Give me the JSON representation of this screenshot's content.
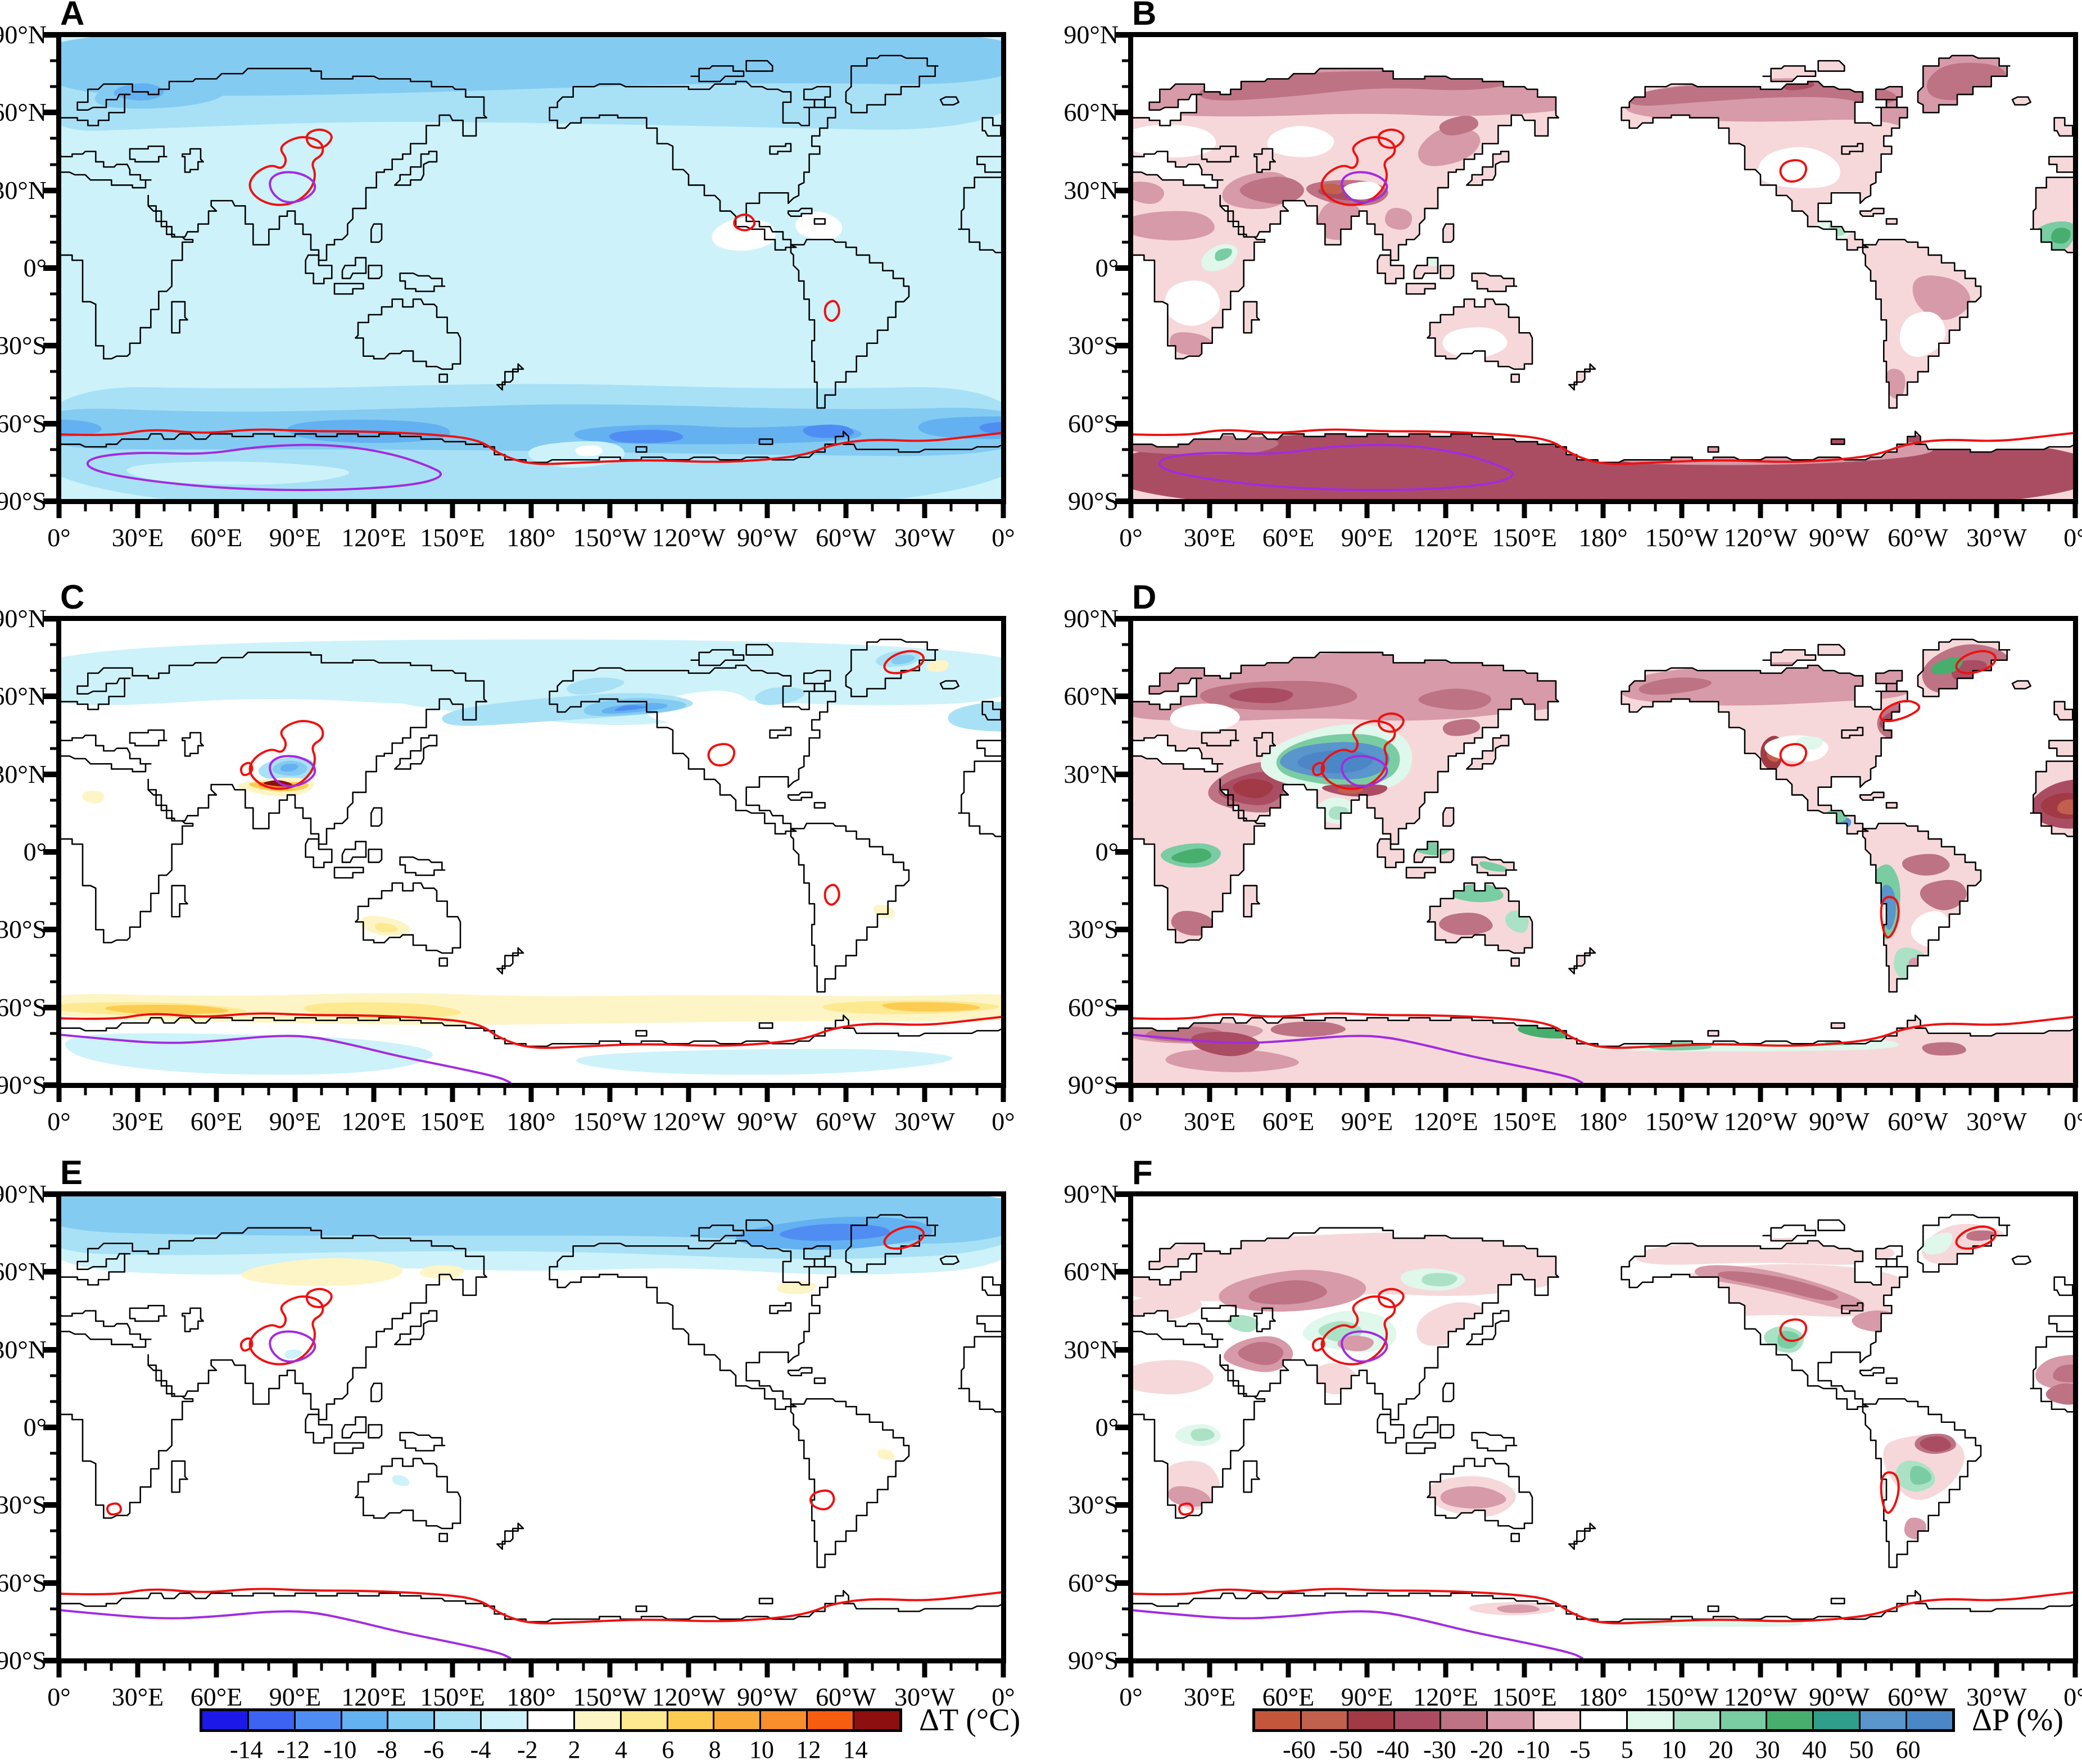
{
  "panels": [
    {
      "letter": "A",
      "quantity": "ΔT (°C)"
    },
    {
      "letter": "B",
      "quantity": "ΔP (%)"
    },
    {
      "letter": "C",
      "quantity": "ΔT (°C)"
    },
    {
      "letter": "D",
      "quantity": "ΔP (%)"
    },
    {
      "letter": "E",
      "quantity": "ΔT (°C)"
    },
    {
      "letter": "F",
      "quantity": "ΔP (%)"
    }
  ],
  "axes": {
    "lat_labels": [
      "90°N",
      "60°N",
      "30°N",
      "0°",
      "30°S",
      "60°S",
      "90°S"
    ],
    "lat_values": [
      90,
      60,
      30,
      0,
      -30,
      -60,
      -90
    ],
    "lon_labels": [
      "0°",
      "30°E",
      "60°E",
      "90°E",
      "120°E",
      "150°E",
      "180°",
      "150°W",
      "120°W",
      "90°W",
      "60°W",
      "30°W",
      "0°"
    ],
    "lon_values": [
      0,
      30,
      60,
      90,
      120,
      150,
      180,
      210,
      240,
      270,
      300,
      330,
      360
    ],
    "minor_tick_deg": 10,
    "major_tick_deg": 30
  },
  "colorbars": [
    {
      "id": "dT",
      "label": "ΔT (°C)",
      "tick_labels": [
        "-14",
        "-12",
        "-10",
        "-8",
        "-6",
        "-4",
        "-2",
        "2",
        "4",
        "6",
        "8",
        "10",
        "12",
        "14"
      ],
      "colors": [
        "#1c19e8",
        "#3c63f1",
        "#4f8df3",
        "#63b1f0",
        "#84cbf2",
        "#a8e1f6",
        "#cdf2fa",
        "#ffffff",
        "#fdf5c6",
        "#fde990",
        "#fccc52",
        "#fbab3a",
        "#f98e2d",
        "#f75d10",
        "#8e0f0f"
      ]
    },
    {
      "id": "dP",
      "label": "ΔP (%)",
      "tick_labels": [
        "-60",
        "-50",
        "-40",
        "-30",
        "-20",
        "-10",
        "-5",
        "5",
        "10",
        "20",
        "30",
        "40",
        "50",
        "60"
      ],
      "colors": [
        "#c4573b",
        "#c2604e",
        "#a13a45",
        "#aa4d63",
        "#bd7384",
        "#d79aa8",
        "#f6d8da",
        "#ffffff",
        "#e0f7ec",
        "#abe2c6",
        "#7acca3",
        "#47ae6d",
        "#2f9f8c",
        "#5a95cb",
        "#4b87c6"
      ]
    }
  ],
  "map_colors": {
    "coastline": "#000000",
    "ocean": "#ffffff",
    "contour_red": "#ee1111",
    "contour_purple": "#a22be0"
  },
  "chart_data": {
    "type": "heatmap",
    "subtype": "global contour maps, equirectangular projection, 0°E to 0°E (through 180°), 90°N to 90°S",
    "grid": false,
    "panels": [
      {
        "label": "A",
        "variable": "ΔT (°C)",
        "summary": "global cooling: -2 to -4 °C in tropics/mid-latitudes, -6 to -10 °C poleward of 60°, darkest (-10 to -12 °C) over Southern Ocean 55–70°S; red contour rings over Tibetan Plateau, Mongolia, Central America, Andes; red and purple contour lines around Antarctica"
      },
      {
        "label": "B",
        "variable": "ΔP (%)",
        "summary": "widespread drying over land: -10 to -40% across Eurasia, North America, Greenland; -40 to -60% over Himalaya front and all of Antarctica; small +10 to +30% wetting over East Africa, West Africa, Central America; ocean near 0"
      },
      {
        "label": "C",
        "variable": "ΔT (°C)",
        "summary": "cooling -2 to -8 °C over northern high latitudes, North Pacific, and Tibetan Plateau (blue blob inside purple contour); warming +2 to +14 °C narrow band along southern Himalayan flank; +2 to +6 °C warming band over Southern Ocean 55–67°S; Antarctica interior -2 to -4 °C"
      },
      {
        "label": "D",
        "variable": "ΔP (%)",
        "summary": "strong wetting +40 to +60% over Tibetan Plateau/Central Asia (blue core, green fringe) and along Andes; strong drying -40 to -60% over Middle East, NW Africa, West Sahara, eastern Canada; mauve drying band across Siberia; Antarctica light drying with green coastal wetting patches"
      },
      {
        "label": "E",
        "variable": "ΔT (°C)",
        "summary": "cooling north of ~60°N: -2 to -6 °C bands, darkest -8 to -10 °C over NE Canada/Greenland/Arctic; slight warming +2 °C over central Siberia; elsewhere near 0; red/purple contour rings over Tibet, Greenland, Andes; red and purple lines along Antarctica"
      },
      {
        "label": "F",
        "variable": "ΔP (%)",
        "summary": "moderate drying -10 to -40% over mid-latitude continents (W Russia, Iran, Canada diagonal band, Australia, Sahara); patchy wetting +5 to +20% over E Siberia, around Tibetan Plateau, US Rockies, Andes, equatorial Africa; Antarctica near 0"
      }
    ],
    "colorbar_scales": [
      {
        "label": "ΔT (°C)",
        "bin_edges": [
          -14,
          -12,
          -10,
          -8,
          -6,
          -4,
          -2,
          2,
          4,
          6,
          8,
          10,
          12,
          14
        ]
      },
      {
        "label": "ΔP (%)",
        "bin_edges": [
          -60,
          -50,
          -40,
          -30,
          -20,
          -10,
          -5,
          5,
          10,
          20,
          30,
          40,
          50,
          60
        ]
      }
    ],
    "contour_lines": {
      "red": "closed rings over Tibetan Plateau/Mongolia and other hotspots; circumpolar line along Antarctic coast",
      "purple": "inner ring over Tibetan Plateau; line inside Antarctica"
    }
  }
}
